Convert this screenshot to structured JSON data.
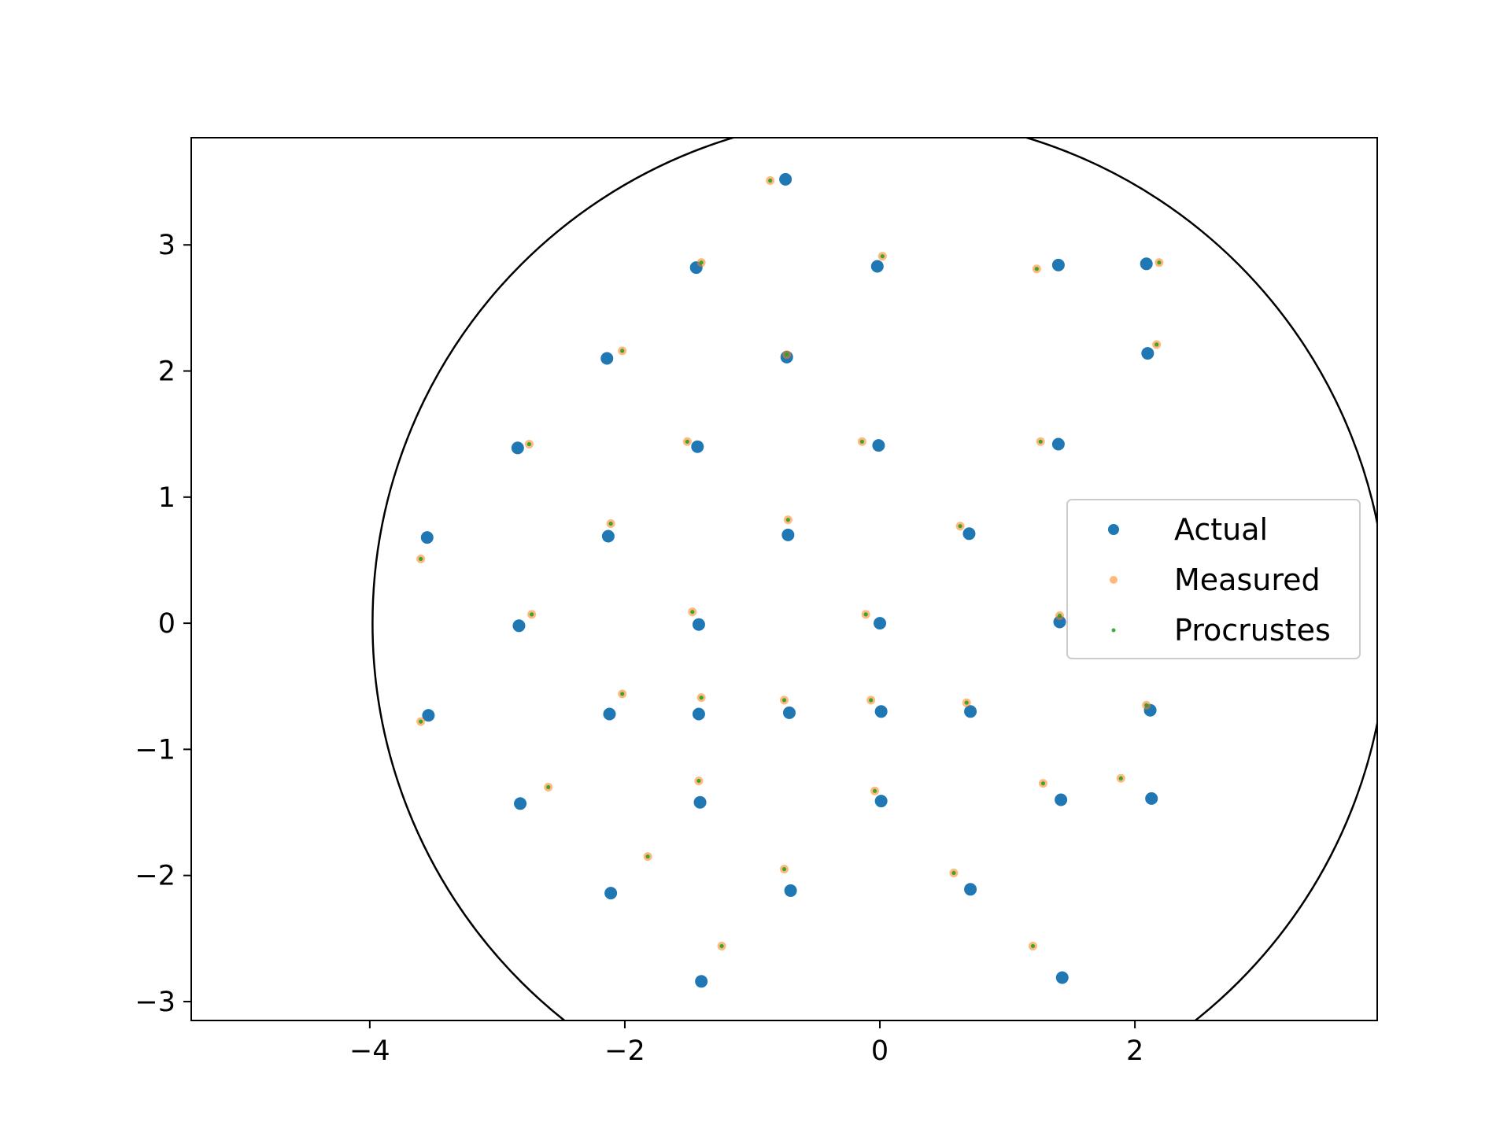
{
  "chart_data": {
    "type": "scatter",
    "title": "",
    "xlabel": "",
    "ylabel": "",
    "xlim": [
      -5.4,
      3.9
    ],
    "ylim": [
      -3.15,
      3.85
    ],
    "grid": false,
    "legend_placement": "center-right",
    "x_ticks": [
      {
        "value": -4,
        "label": "−4"
      },
      {
        "value": -2,
        "label": "−2"
      },
      {
        "value": 0,
        "label": "0"
      },
      {
        "value": 2,
        "label": "2"
      }
    ],
    "y_ticks": [
      {
        "value": -3,
        "label": "−3"
      },
      {
        "value": -2,
        "label": "−2"
      },
      {
        "value": -1,
        "label": "−1"
      },
      {
        "value": 0,
        "label": "0"
      },
      {
        "value": 1,
        "label": "1"
      },
      {
        "value": 2,
        "label": "2"
      },
      {
        "value": 3,
        "label": "3"
      }
    ],
    "circle": {
      "cx": 0,
      "cy": 0,
      "r": 4
    },
    "series": [
      {
        "name": "Actual",
        "color": "#1f77b4",
        "points": [
          [
            -0.74,
            3.52
          ],
          [
            -1.44,
            2.82
          ],
          [
            -0.02,
            2.83
          ],
          [
            1.4,
            2.84
          ],
          [
            2.09,
            2.85
          ],
          [
            -2.14,
            2.1
          ],
          [
            -0.73,
            2.11
          ],
          [
            2.1,
            2.14
          ],
          [
            -2.84,
            1.39
          ],
          [
            -1.43,
            1.4
          ],
          [
            -0.01,
            1.41
          ],
          [
            1.4,
            1.42
          ],
          [
            -3.55,
            0.68
          ],
          [
            -2.13,
            0.69
          ],
          [
            -0.72,
            0.7
          ],
          [
            0.7,
            0.71
          ],
          [
            -2.83,
            -0.02
          ],
          [
            -1.42,
            -0.01
          ],
          [
            0.0,
            0.0
          ],
          [
            1.41,
            0.01
          ],
          [
            -3.54,
            -0.73
          ],
          [
            -2.12,
            -0.72
          ],
          [
            -1.42,
            -0.72
          ],
          [
            -0.71,
            -0.71
          ],
          [
            0.01,
            -0.7
          ],
          [
            0.71,
            -0.7
          ],
          [
            2.12,
            -0.69
          ],
          [
            -2.82,
            -1.43
          ],
          [
            -1.41,
            -1.42
          ],
          [
            0.01,
            -1.41
          ],
          [
            1.42,
            -1.4
          ],
          [
            2.13,
            -1.39
          ],
          [
            -2.11,
            -2.14
          ],
          [
            -0.7,
            -2.12
          ],
          [
            0.71,
            -2.11
          ],
          [
            -1.4,
            -2.84
          ],
          [
            1.43,
            -2.81
          ]
        ]
      },
      {
        "name": "Measured",
        "color": "#ff7f0e",
        "points": [
          [
            -0.86,
            3.51
          ],
          [
            -1.4,
            2.86
          ],
          [
            0.02,
            2.91
          ],
          [
            1.23,
            2.81
          ],
          [
            2.19,
            2.86
          ],
          [
            -2.02,
            2.16
          ],
          [
            -0.73,
            2.13
          ],
          [
            2.17,
            2.21
          ],
          [
            -2.75,
            1.42
          ],
          [
            -1.51,
            1.44
          ],
          [
            -0.14,
            1.44
          ],
          [
            1.26,
            1.44
          ],
          [
            -3.6,
            0.51
          ],
          [
            -2.11,
            0.79
          ],
          [
            -0.72,
            0.82
          ],
          [
            0.63,
            0.77
          ],
          [
            -2.73,
            0.07
          ],
          [
            -1.47,
            0.09
          ],
          [
            -0.11,
            0.07
          ],
          [
            1.41,
            0.06
          ],
          [
            -3.6,
            -0.78
          ],
          [
            -2.02,
            -0.56
          ],
          [
            -1.4,
            -0.59
          ],
          [
            -0.75,
            -0.61
          ],
          [
            -0.07,
            -0.61
          ],
          [
            0.68,
            -0.63
          ],
          [
            2.09,
            -0.65
          ],
          [
            -2.6,
            -1.3
          ],
          [
            -1.42,
            -1.25
          ],
          [
            -0.04,
            -1.33
          ],
          [
            1.28,
            -1.27
          ],
          [
            1.89,
            -1.23
          ],
          [
            -1.82,
            -1.85
          ],
          [
            -0.75,
            -1.95
          ],
          [
            0.58,
            -1.98
          ],
          [
            -1.24,
            -2.56
          ],
          [
            1.2,
            -2.56
          ]
        ]
      },
      {
        "name": "Procrustes",
        "color": "#2ca02c",
        "points": [
          [
            -0.86,
            3.51
          ],
          [
            -1.4,
            2.86
          ],
          [
            0.02,
            2.91
          ],
          [
            1.23,
            2.81
          ],
          [
            2.19,
            2.86
          ],
          [
            -2.02,
            2.16
          ],
          [
            -0.73,
            2.13
          ],
          [
            2.17,
            2.21
          ],
          [
            -2.75,
            1.42
          ],
          [
            -1.51,
            1.44
          ],
          [
            -0.14,
            1.44
          ],
          [
            1.26,
            1.44
          ],
          [
            -3.6,
            0.51
          ],
          [
            -2.11,
            0.79
          ],
          [
            -0.72,
            0.82
          ],
          [
            0.63,
            0.77
          ],
          [
            -2.73,
            0.07
          ],
          [
            -1.47,
            0.09
          ],
          [
            -0.11,
            0.07
          ],
          [
            1.41,
            0.06
          ],
          [
            -3.6,
            -0.78
          ],
          [
            -2.02,
            -0.56
          ],
          [
            -1.4,
            -0.59
          ],
          [
            -0.75,
            -0.61
          ],
          [
            -0.07,
            -0.61
          ],
          [
            0.68,
            -0.63
          ],
          [
            2.09,
            -0.65
          ],
          [
            -2.6,
            -1.3
          ],
          [
            -1.42,
            -1.25
          ],
          [
            -0.04,
            -1.33
          ],
          [
            1.28,
            -1.27
          ],
          [
            1.89,
            -1.23
          ],
          [
            -1.82,
            -1.85
          ],
          [
            -0.75,
            -1.95
          ],
          [
            0.58,
            -1.98
          ],
          [
            -1.24,
            -2.56
          ],
          [
            1.2,
            -2.56
          ]
        ]
      }
    ]
  }
}
